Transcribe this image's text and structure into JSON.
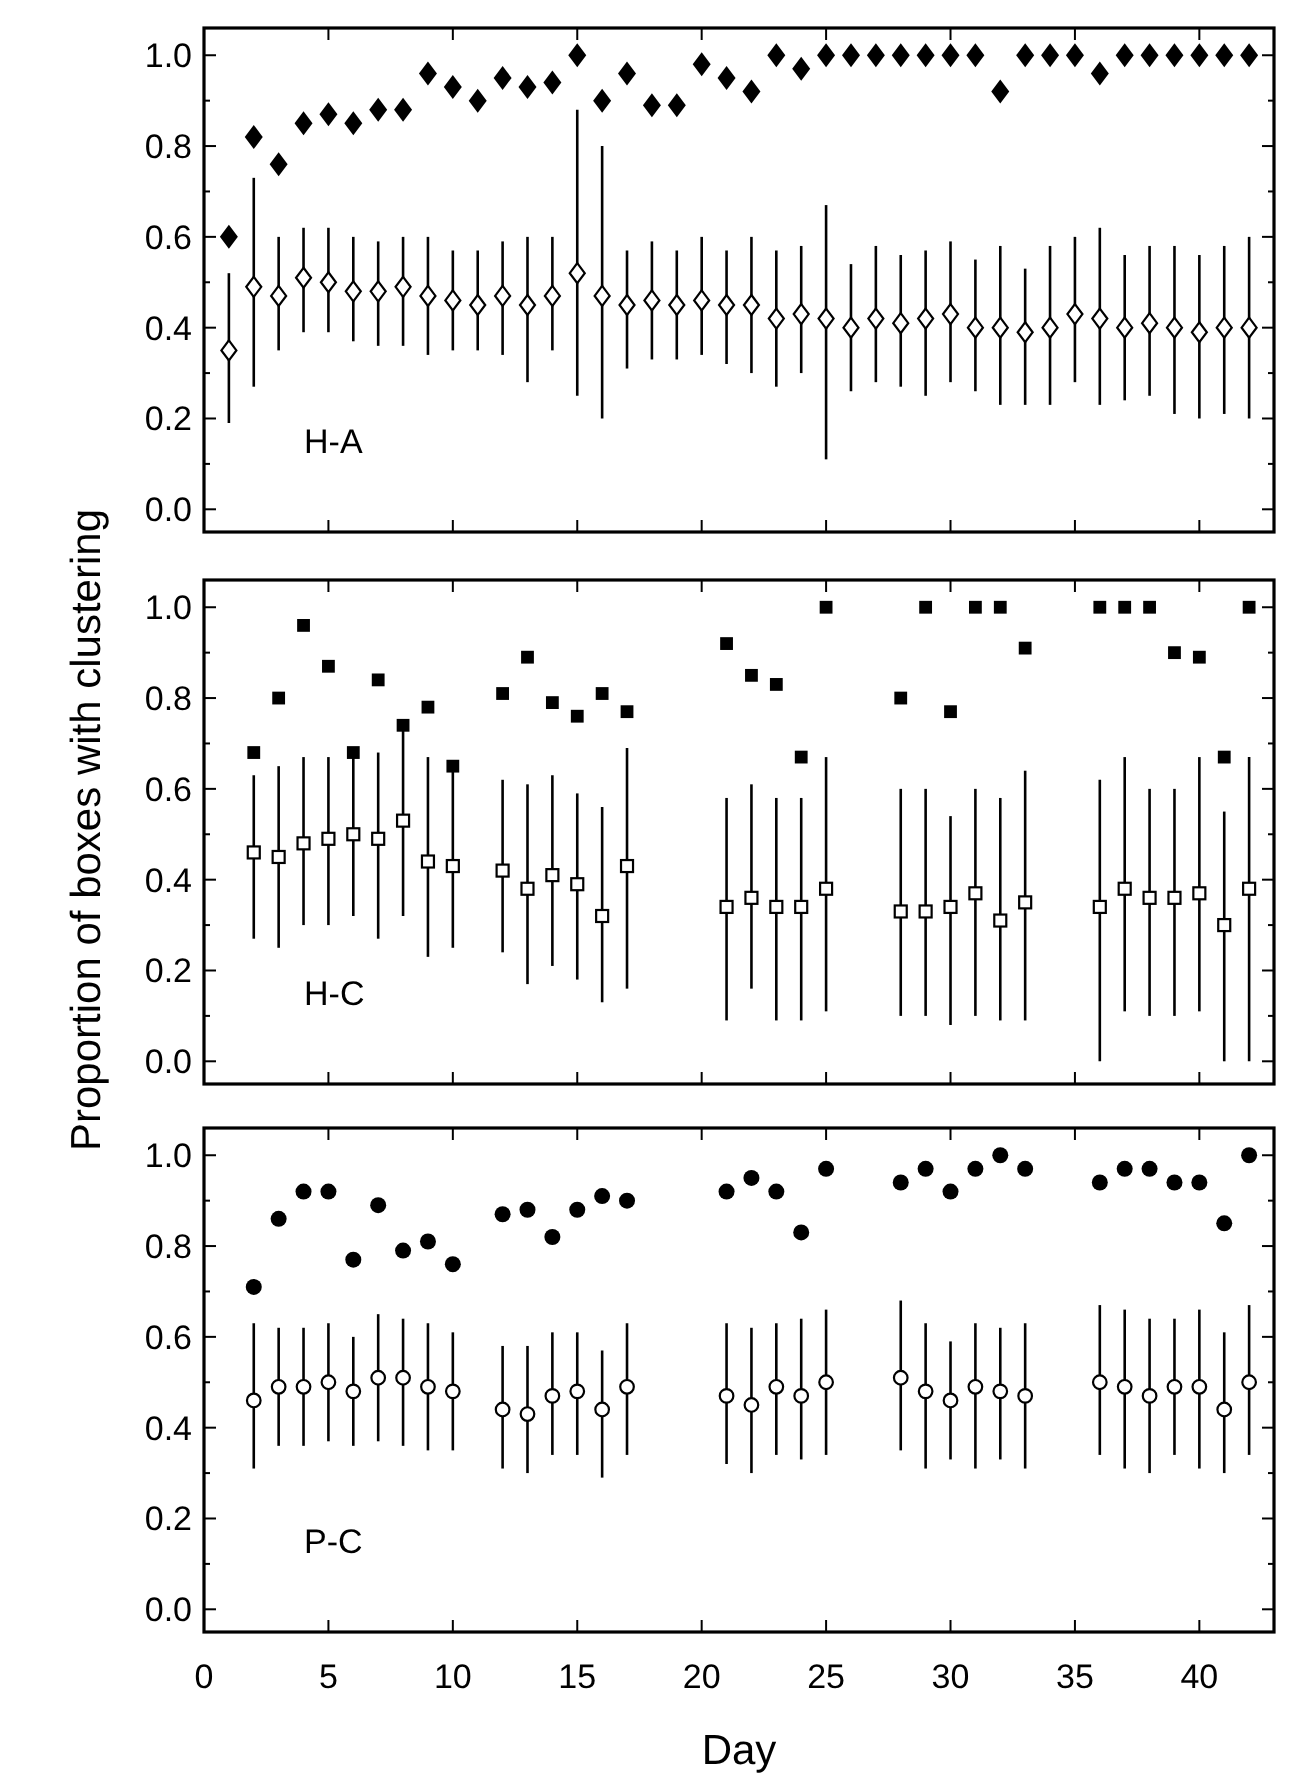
{
  "chart_data": [
    {
      "type": "scatter",
      "x": [
        1,
        2,
        3,
        4,
        5,
        6,
        7,
        8,
        9,
        10,
        11,
        12,
        13,
        14,
        15,
        16,
        17,
        18,
        19,
        20,
        21,
        22,
        23,
        24,
        25,
        26,
        27,
        28,
        29,
        30,
        31,
        32,
        33,
        34,
        35,
        36,
        37,
        38,
        39,
        40,
        41,
        42
      ],
      "xlim": [
        0,
        43
      ],
      "xticks": [
        0,
        5,
        10,
        15,
        20,
        25,
        30,
        35,
        40
      ],
      "ylim": [
        -0.05,
        1.06
      ],
      "yticks": [
        {
          "value": 0,
          "label": "0.0"
        },
        {
          "value": 0.1,
          "label": null
        },
        {
          "value": 0.2,
          "label": "0.2"
        },
        {
          "value": 0.3,
          "label": null
        },
        {
          "value": 0.4,
          "label": "0.4"
        },
        {
          "value": 0.5,
          "label": null
        },
        {
          "value": 0.6,
          "label": "0.6"
        },
        {
          "value": 0.7,
          "label": null
        },
        {
          "value": 0.8,
          "label": "0.8"
        },
        {
          "value": 0.9,
          "label": null
        },
        {
          "value": 1,
          "label": "1.0"
        }
      ],
      "tick_labels": "y",
      "marker": "diamond",
      "annotations": [
        "H-A"
      ],
      "series": [
        {
          "color": "#000000",
          "values": [
            0.6,
            0.82,
            0.76,
            0.85,
            0.87,
            0.85,
            0.88,
            0.88,
            0.96,
            0.93,
            0.9,
            0.95,
            0.93,
            0.94,
            1.0,
            0.9,
            0.96,
            0.89,
            0.89,
            0.98,
            0.95,
            0.92,
            1.0,
            0.97,
            1.0,
            1.0,
            1.0,
            1.0,
            1.0,
            1.0,
            1.0,
            0.92,
            1.0,
            1.0,
            1.0,
            0.96,
            1.0,
            1.0,
            1.0,
            1.0,
            1.0,
            1.0
          ]
        },
        {
          "color": "#000000",
          "values": [
            0.35,
            0.49,
            0.47,
            0.51,
            0.5,
            0.48,
            0.48,
            0.49,
            0.47,
            0.46,
            0.45,
            0.47,
            0.45,
            0.47,
            0.52,
            0.47,
            0.45,
            0.46,
            0.45,
            0.46,
            0.45,
            0.45,
            0.42,
            0.43,
            0.42,
            0.4,
            0.42,
            0.41,
            0.42,
            0.43,
            0.4,
            0.4,
            0.39,
            0.4,
            0.43,
            0.42,
            0.4,
            0.41,
            0.4,
            0.39,
            0.4,
            0.4
          ],
          "errors": [
            [
              0.19,
              0.52
            ],
            [
              0.27,
              0.73
            ],
            [
              0.35,
              0.6
            ],
            [
              0.39,
              0.62
            ],
            [
              0.39,
              0.62
            ],
            [
              0.37,
              0.6
            ],
            [
              0.36,
              0.59
            ],
            [
              0.36,
              0.6
            ],
            [
              0.34,
              0.6
            ],
            [
              0.35,
              0.57
            ],
            [
              0.35,
              0.57
            ],
            [
              0.34,
              0.59
            ],
            [
              0.28,
              0.6
            ],
            [
              0.35,
              0.6
            ],
            [
              0.25,
              0.88
            ],
            [
              0.2,
              0.8
            ],
            [
              0.31,
              0.57
            ],
            [
              0.33,
              0.59
            ],
            [
              0.33,
              0.57
            ],
            [
              0.34,
              0.6
            ],
            [
              0.32,
              0.57
            ],
            [
              0.3,
              0.6
            ],
            [
              0.27,
              0.57
            ],
            [
              0.3,
              0.58
            ],
            [
              0.11,
              0.67
            ],
            [
              0.26,
              0.54
            ],
            [
              0.28,
              0.58
            ],
            [
              0.27,
              0.56
            ],
            [
              0.25,
              0.57
            ],
            [
              0.28,
              0.59
            ],
            [
              0.26,
              0.55
            ],
            [
              0.23,
              0.58
            ],
            [
              0.23,
              0.53
            ],
            [
              0.23,
              0.58
            ],
            [
              0.28,
              0.6
            ],
            [
              0.23,
              0.62
            ],
            [
              0.24,
              0.56
            ],
            [
              0.25,
              0.58
            ],
            [
              0.21,
              0.58
            ],
            [
              0.2,
              0.56
            ],
            [
              0.21,
              0.58
            ],
            [
              0.2,
              0.6
            ]
          ]
        }
      ]
    },
    {
      "type": "scatter",
      "x": [
        2,
        3,
        4,
        5,
        6,
        7,
        8,
        9,
        10,
        12,
        13,
        14,
        15,
        16,
        17,
        21,
        22,
        23,
        24,
        25,
        28,
        29,
        30,
        31,
        32,
        33,
        36,
        37,
        38,
        39,
        40,
        41,
        42
      ],
      "xlim": [
        0,
        43
      ],
      "xticks": [
        0,
        5,
        10,
        15,
        20,
        25,
        30,
        35,
        40
      ],
      "ylim": [
        -0.05,
        1.06
      ],
      "yticks": [
        {
          "value": 0,
          "label": "0.0"
        },
        {
          "value": 0.1,
          "label": null
        },
        {
          "value": 0.2,
          "label": "0.2"
        },
        {
          "value": 0.3,
          "label": null
        },
        {
          "value": 0.4,
          "label": "0.4"
        },
        {
          "value": 0.5,
          "label": null
        },
        {
          "value": 0.6,
          "label": "0.6"
        },
        {
          "value": 0.7,
          "label": null
        },
        {
          "value": 0.8,
          "label": "0.8"
        },
        {
          "value": 0.9,
          "label": null
        },
        {
          "value": 1,
          "label": "1.0"
        }
      ],
      "tick_labels": "y",
      "marker": "square",
      "annotations": [
        "H-C"
      ],
      "ylabel": "Proportion of boxes with clustering",
      "series": [
        {
          "color": "#000000",
          "values": [
            0.68,
            0.8,
            0.96,
            0.87,
            0.68,
            0.84,
            0.74,
            0.78,
            0.65,
            0.81,
            0.89,
            0.79,
            0.76,
            0.81,
            0.77,
            0.92,
            0.85,
            0.83,
            0.67,
            1.0,
            0.8,
            1.0,
            0.77,
            1.0,
            1.0,
            0.91,
            1.0,
            1.0,
            1.0,
            0.9,
            0.89,
            0.67,
            1.0
          ]
        },
        {
          "color": "#000000",
          "values": [
            0.46,
            0.45,
            0.48,
            0.49,
            0.5,
            0.49,
            0.53,
            0.44,
            0.43,
            0.42,
            0.38,
            0.41,
            0.39,
            0.32,
            0.43,
            0.34,
            0.36,
            0.34,
            0.34,
            0.38,
            0.33,
            0.33,
            0.34,
            0.37,
            0.31,
            0.35,
            0.34,
            0.38,
            0.36,
            0.36,
            0.37,
            0.3,
            0.38
          ],
          "errors": [
            [
              0.27,
              0.63
            ],
            [
              0.25,
              0.65
            ],
            [
              0.3,
              0.67
            ],
            [
              0.3,
              0.67
            ],
            [
              0.32,
              0.68
            ],
            [
              0.27,
              0.68
            ],
            [
              0.32,
              0.74
            ],
            [
              0.23,
              0.67
            ],
            [
              0.25,
              0.65
            ],
            [
              0.24,
              0.62
            ],
            [
              0.17,
              0.61
            ],
            [
              0.21,
              0.63
            ],
            [
              0.18,
              0.59
            ],
            [
              0.13,
              0.56
            ],
            [
              0.16,
              0.69
            ],
            [
              0.09,
              0.58
            ],
            [
              0.16,
              0.61
            ],
            [
              0.09,
              0.58
            ],
            [
              0.09,
              0.58
            ],
            [
              0.11,
              0.67
            ],
            [
              0.1,
              0.6
            ],
            [
              0.1,
              0.6
            ],
            [
              0.08,
              0.54
            ],
            [
              0.1,
              0.6
            ],
            [
              0.09,
              0.58
            ],
            [
              0.09,
              0.64
            ],
            [
              0.0,
              0.62
            ],
            [
              0.11,
              0.67
            ],
            [
              0.1,
              0.6
            ],
            [
              0.1,
              0.6
            ],
            [
              0.11,
              0.67
            ],
            [
              0.0,
              0.55
            ],
            [
              0.0,
              0.67
            ]
          ]
        }
      ]
    },
    {
      "type": "scatter",
      "x": [
        2,
        3,
        4,
        5,
        6,
        7,
        8,
        9,
        10,
        12,
        13,
        14,
        15,
        16,
        17,
        21,
        22,
        23,
        24,
        25,
        28,
        29,
        30,
        31,
        32,
        33,
        36,
        37,
        38,
        39,
        40,
        41,
        42
      ],
      "xlim": [
        0,
        43
      ],
      "xticks": [
        0,
        5,
        10,
        15,
        20,
        25,
        30,
        35,
        40
      ],
      "ylim": [
        -0.05,
        1.06
      ],
      "yticks": [
        {
          "value": 0,
          "label": "0.0"
        },
        {
          "value": 0.1,
          "label": null
        },
        {
          "value": 0.2,
          "label": "0.2"
        },
        {
          "value": 0.3,
          "label": null
        },
        {
          "value": 0.4,
          "label": "0.4"
        },
        {
          "value": 0.5,
          "label": null
        },
        {
          "value": 0.6,
          "label": "0.6"
        },
        {
          "value": 0.7,
          "label": null
        },
        {
          "value": 0.8,
          "label": "0.8"
        },
        {
          "value": 0.9,
          "label": null
        },
        {
          "value": 1,
          "label": "1.0"
        }
      ],
      "marker": "circle",
      "annotations": [
        "P-C"
      ],
      "xlabel": "Day",
      "series": [
        {
          "color": "#000000",
          "values": [
            0.71,
            0.86,
            0.92,
            0.92,
            0.77,
            0.89,
            0.79,
            0.81,
            0.76,
            0.87,
            0.88,
            0.82,
            0.88,
            0.91,
            0.9,
            0.92,
            0.95,
            0.92,
            0.83,
            0.97,
            0.94,
            0.97,
            0.92,
            0.97,
            1.0,
            0.97,
            0.94,
            0.97,
            0.97,
            0.94,
            0.94,
            0.85,
            1.0
          ]
        },
        {
          "color": "#000000",
          "values": [
            0.46,
            0.49,
            0.49,
            0.5,
            0.48,
            0.51,
            0.51,
            0.49,
            0.48,
            0.44,
            0.43,
            0.47,
            0.48,
            0.44,
            0.49,
            0.47,
            0.45,
            0.49,
            0.47,
            0.5,
            0.51,
            0.48,
            0.46,
            0.49,
            0.48,
            0.47,
            0.5,
            0.49,
            0.47,
            0.49,
            0.49,
            0.44,
            0.5
          ],
          "errors": [
            [
              0.31,
              0.63
            ],
            [
              0.36,
              0.62
            ],
            [
              0.36,
              0.62
            ],
            [
              0.37,
              0.63
            ],
            [
              0.36,
              0.6
            ],
            [
              0.37,
              0.65
            ],
            [
              0.36,
              0.64
            ],
            [
              0.35,
              0.63
            ],
            [
              0.35,
              0.61
            ],
            [
              0.31,
              0.58
            ],
            [
              0.3,
              0.58
            ],
            [
              0.34,
              0.61
            ],
            [
              0.34,
              0.61
            ],
            [
              0.29,
              0.57
            ],
            [
              0.34,
              0.63
            ],
            [
              0.32,
              0.63
            ],
            [
              0.3,
              0.62
            ],
            [
              0.34,
              0.63
            ],
            [
              0.33,
              0.64
            ],
            [
              0.34,
              0.66
            ],
            [
              0.35,
              0.68
            ],
            [
              0.31,
              0.63
            ],
            [
              0.33,
              0.59
            ],
            [
              0.31,
              0.63
            ],
            [
              0.33,
              0.62
            ],
            [
              0.31,
              0.63
            ],
            [
              0.34,
              0.67
            ],
            [
              0.31,
              0.66
            ],
            [
              0.3,
              0.64
            ],
            [
              0.34,
              0.64
            ],
            [
              0.31,
              0.66
            ],
            [
              0.3,
              0.61
            ],
            [
              0.34,
              0.67
            ]
          ]
        }
      ]
    }
  ]
}
